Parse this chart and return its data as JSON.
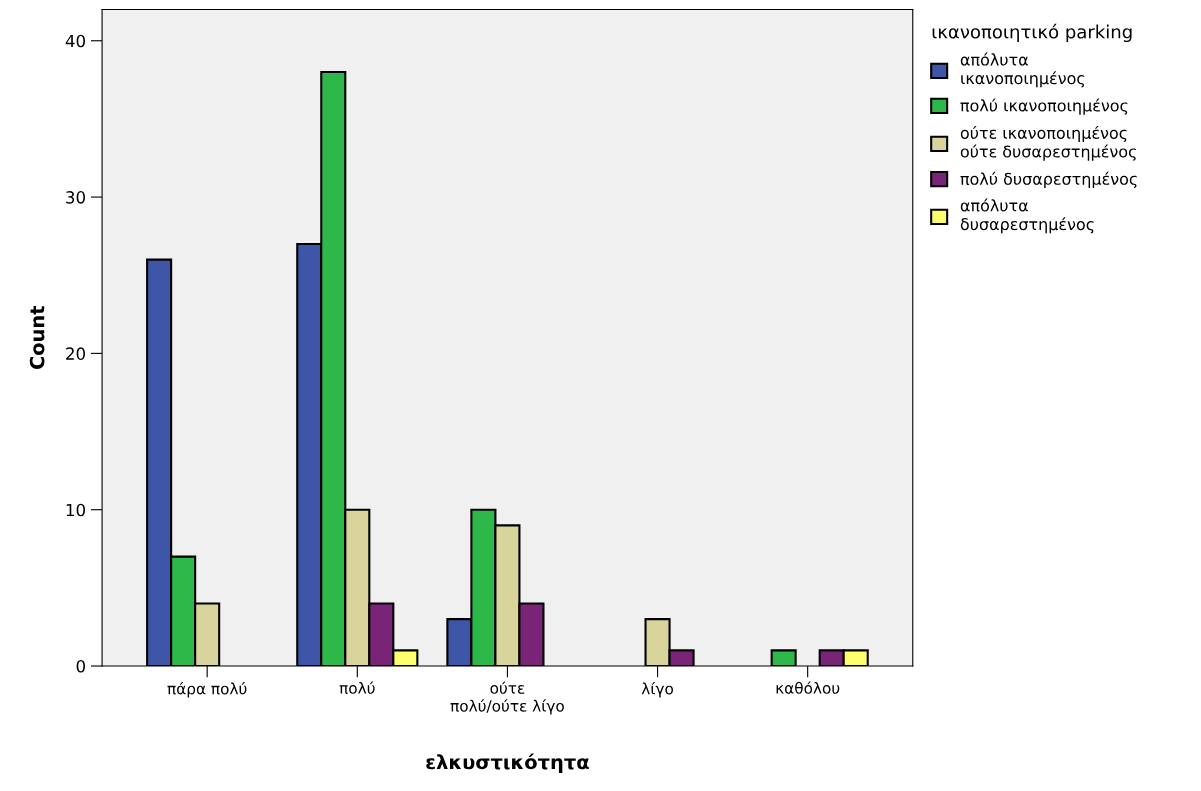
{
  "chart_data": {
    "type": "bar",
    "xlabel": "ελκυστικότητα",
    "ylabel": "Count",
    "legend_title": "ικανοποιητικό parking",
    "categories": [
      "πάρα πολύ",
      "πολύ",
      "ούτε\nπολύ/ούτε λίγο",
      "λίγο",
      "καθόλου"
    ],
    "series": [
      {
        "name": "απόλυτα\nικανοποιημένος",
        "color": "#3f56a8",
        "values": [
          26,
          27,
          3,
          null,
          null
        ]
      },
      {
        "name": "πολύ ικανοποιημένος",
        "color": "#2fb84a",
        "values": [
          7,
          38,
          10,
          null,
          1
        ]
      },
      {
        "name": "ούτε ικανοποιημένος\nούτε δυσαρεστημένος",
        "color": "#d8d49c",
        "values": [
          4,
          10,
          9,
          3,
          null
        ]
      },
      {
        "name": "πολύ δυσαρεστημένος",
        "color": "#7a2478",
        "values": [
          null,
          4,
          4,
          1,
          1
        ]
      },
      {
        "name": "απόλυτα\nδυσαρεστημένος",
        "color": "#ffff6e",
        "values": [
          null,
          1,
          null,
          null,
          1
        ]
      }
    ],
    "ylim": [
      0,
      42
    ],
    "yticks": [
      0,
      10,
      20,
      30,
      40
    ],
    "grid": false,
    "legend": "right"
  }
}
